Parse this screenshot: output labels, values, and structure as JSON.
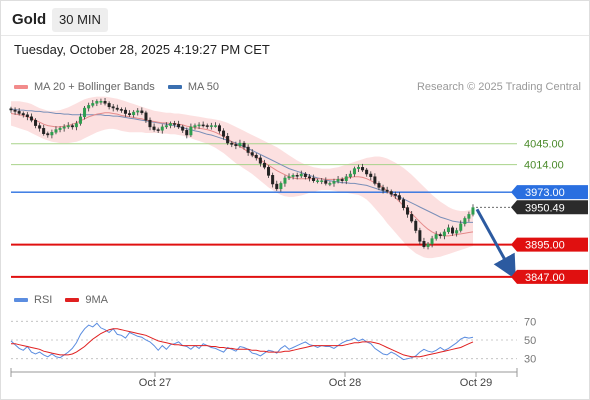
{
  "header": {
    "title": "Gold",
    "timeframe": "30 MIN"
  },
  "timestamp": "Tuesday, October 28, 2025 4:19:27 PM CET",
  "legend": {
    "items": [
      {
        "label": "MA 20 + Bollinger Bands",
        "color": "#f28b8b"
      },
      {
        "label": "MA 50",
        "color": "#3a6fb0"
      }
    ],
    "credit": "Research © 2025 Trading Central"
  },
  "rsi_legend": {
    "items": [
      {
        "label": "RSI",
        "color": "#5b8de0"
      },
      {
        "label": "9MA",
        "color": "#e02020"
      }
    ]
  },
  "chart_data": [
    {
      "type": "candlestick",
      "title": "",
      "xlabel": "",
      "ylabel": "",
      "x_ticks": [
        "Oct 27",
        "Oct 28",
        "Oct 29"
      ],
      "ylim": [
        3835,
        4110
      ],
      "last_price": 3950.49,
      "levels": [
        {
          "value": 4045.0,
          "label": "4045.00",
          "kind": "resistance",
          "color": "#a8d38a"
        },
        {
          "value": 4014.0,
          "label": "4014.00",
          "kind": "resistance",
          "color": "#a8d38a"
        },
        {
          "value": 3973.0,
          "label": "3973.00",
          "kind": "pivot",
          "color": "#2a6fe0"
        },
        {
          "value": 3895.0,
          "label": "3895.00",
          "kind": "support",
          "color": "#e01010"
        },
        {
          "value": 3847.0,
          "label": "3847.00",
          "kind": "support",
          "color": "#e01010"
        }
      ],
      "close": [
        4095,
        4093,
        4090,
        4088,
        4085,
        4080,
        4072,
        4068,
        4060,
        4058,
        4062,
        4066,
        4068,
        4070,
        4072,
        4070,
        4075,
        4085,
        4098,
        4102,
        4105,
        4108,
        4108,
        4105,
        4100,
        4098,
        4096,
        4095,
        4090,
        4088,
        4092,
        4094,
        4091,
        4080,
        4070,
        4066,
        4065,
        4070,
        4072,
        4075,
        4074,
        4070,
        4065,
        4058,
        4070,
        4072,
        4073,
        4072,
        4071,
        4072,
        4072,
        4064,
        4056,
        4046,
        4044,
        4042,
        4046,
        4040,
        4032,
        4028,
        4024,
        4016,
        4010,
        3998,
        3985,
        3978,
        3986,
        3994,
        3996,
        3998,
        3997,
        4000,
        3996,
        3994,
        3990,
        3990,
        3990,
        3986,
        3986,
        3989,
        3992,
        3990,
        3996,
        4000,
        4008,
        4010,
        4006,
        4000,
        3996,
        3986,
        3980,
        3976,
        3974,
        3970,
        3968,
        3962,
        3950,
        3940,
        3930,
        3916,
        3900,
        3892,
        3896,
        3904,
        3910,
        3908,
        3914,
        3920,
        3912,
        3916,
        3926,
        3934,
        3940,
        3950
      ],
      "ma20": [
        4090,
        4089,
        4088,
        4087,
        4085,
        4083,
        4080,
        4077,
        4074,
        4072,
        4071,
        4070,
        4070,
        4071,
        4072,
        4074,
        4076,
        4079,
        4082,
        4085,
        4087,
        4089,
        4090,
        4091,
        4091,
        4090,
        4089,
        4087,
        4086,
        4085,
        4084,
        4083,
        4082,
        4080,
        4079,
        4078,
        4077,
        4076,
        4076,
        4075,
        4075,
        4074,
        4073,
        4071,
        4070,
        4069,
        4068,
        4067,
        4066,
        4064,
        4062,
        4059,
        4056,
        4052,
        4048,
        4044,
        4041,
        4037,
        4033,
        4029,
        4025,
        4021,
        4017,
        4013,
        4009,
        4005,
        4002,
        3999,
        3996,
        3994,
        3993,
        3993,
        3993,
        3993,
        3993,
        3993,
        3993,
        3992,
        3992,
        3992,
        3992,
        3993,
        3994,
        3995,
        3996,
        3996,
        3995,
        3993,
        3990,
        3987,
        3984,
        3980,
        3975,
        3970,
        3965,
        3959,
        3953,
        3947,
        3941,
        3935,
        3929,
        3923,
        3918,
        3914,
        3911,
        3909,
        3908,
        3908,
        3909,
        3910,
        3911,
        3912,
        3913,
        3914
      ],
      "ma50": [
        4096,
        4096,
        4095,
        4095,
        4094,
        4094,
        4093,
        4093,
        4092,
        4092,
        4091,
        4090,
        4090,
        4089,
        4089,
        4088,
        4088,
        4088,
        4088,
        4088,
        4088,
        4088,
        4088,
        4087,
        4087,
        4086,
        4086,
        4085,
        4084,
        4083,
        4082,
        4081,
        4080,
        4079,
        4078,
        4077,
        4076,
        4075,
        4074,
        4073,
        4072,
        4070,
        4069,
        4067,
        4066,
        4064,
        4063,
        4061,
        4059,
        4058,
        4056,
        4054,
        4052,
        4050,
        4048,
        4046,
        4043,
        4041,
        4038,
        4035,
        4032,
        4029,
        4026,
        4023,
        4020,
        4017,
        4014,
        4011,
        4008,
        4006,
        4004,
        4002,
        4000,
        3998,
        3996,
        3994,
        3993,
        3991,
        3990,
        3989,
        3988,
        3987,
        3987,
        3986,
        3986,
        3985,
        3984,
        3983,
        3981,
        3979,
        3977,
        3975,
        3973,
        3971,
        3968,
        3966,
        3963,
        3960,
        3957,
        3954,
        3951,
        3948,
        3945,
        3942,
        3939,
        3936,
        3934,
        3932,
        3930,
        3929,
        3928,
        3928,
        3928,
        3928
      ],
      "bb_upper": [
        4108,
        4108,
        4108,
        4107,
        4106,
        4104,
        4101,
        4098,
        4096,
        4094,
        4094,
        4094,
        4095,
        4097,
        4099,
        4102,
        4105,
        4108,
        4111,
        4113,
        4114,
        4115,
        4115,
        4115,
        4114,
        4113,
        4112,
        4110,
        4108,
        4106,
        4104,
        4102,
        4100,
        4098,
        4096,
        4094,
        4093,
        4092,
        4091,
        4091,
        4090,
        4090,
        4089,
        4088,
        4087,
        4086,
        4085,
        4084,
        4083,
        4082,
        4081,
        4080,
        4078,
        4076,
        4073,
        4070,
        4067,
        4064,
        4061,
        4058,
        4055,
        4052,
        4049,
        4046,
        4043,
        4040,
        4036,
        4032,
        4028,
        4024,
        4020,
        4017,
        4014,
        4012,
        4010,
        4009,
        4008,
        4008,
        4008,
        4009,
        4010,
        4012,
        4014,
        4016,
        4018,
        4020,
        4022,
        4024,
        4025,
        4026,
        4026,
        4025,
        4023,
        4020,
        4017,
        4013,
        4009,
        4004,
        3999,
        3993,
        3987,
        3981,
        3975,
        3969,
        3964,
        3959,
        3955,
        3951,
        3948,
        3946,
        3945,
        3945,
        3946,
        3948
      ],
      "bb_lower": [
        4072,
        4070,
        4068,
        4066,
        4064,
        4061,
        4058,
        4055,
        4052,
        4050,
        4048,
        4047,
        4046,
        4046,
        4046,
        4047,
        4048,
        4050,
        4053,
        4056,
        4059,
        4062,
        4064,
        4066,
        4067,
        4067,
        4066,
        4064,
        4063,
        4062,
        4062,
        4062,
        4062,
        4061,
        4061,
        4061,
        4061,
        4060,
        4060,
        4059,
        4059,
        4058,
        4057,
        4055,
        4053,
        4051,
        4049,
        4047,
        4045,
        4042,
        4039,
        4035,
        4031,
        4026,
        4021,
        4016,
        4012,
        4008,
        4004,
        4000,
        3995,
        3990,
        3985,
        3980,
        3976,
        3972,
        3969,
        3967,
        3966,
        3966,
        3967,
        3968,
        3970,
        3972,
        3973,
        3975,
        3976,
        3976,
        3976,
        3975,
        3974,
        3973,
        3972,
        3971,
        3970,
        3969,
        3966,
        3962,
        3956,
        3949,
        3942,
        3935,
        3927,
        3920,
        3913,
        3906,
        3899,
        3892,
        3887,
        3882,
        3879,
        3876,
        3875,
        3875,
        3876,
        3877,
        3879,
        3881,
        3883,
        3885,
        3887,
        3889,
        3891,
        3893
      ],
      "forecast": {
        "from": 3950.49,
        "to": 3847.0
      }
    },
    {
      "type": "line",
      "title": "",
      "ylim": [
        20,
        80
      ],
      "y_ticks": [
        70,
        50,
        30
      ],
      "series": [
        {
          "name": "RSI",
          "color": "#5b8de0",
          "values": [
            49,
            45,
            41,
            39,
            43,
            37,
            35,
            37,
            34,
            32,
            35,
            32,
            31,
            34,
            37,
            41,
            47,
            56,
            62,
            66,
            64,
            68,
            63,
            61,
            58,
            62,
            56,
            55,
            52,
            58,
            56,
            54,
            53,
            50,
            48,
            44,
            39,
            44,
            40,
            45,
            46,
            48,
            44,
            43,
            40,
            44,
            41,
            46,
            44,
            42,
            41,
            39,
            37,
            42,
            40,
            38,
            43,
            42,
            40,
            36,
            35,
            33,
            36,
            39,
            38,
            36,
            41,
            44,
            40,
            42,
            44,
            46,
            48,
            45,
            44,
            42,
            44,
            43,
            43,
            41,
            44,
            47,
            49,
            50,
            52,
            49,
            51,
            48,
            46,
            41,
            38,
            35,
            34,
            37,
            35,
            32,
            29,
            30,
            31,
            33,
            37,
            40,
            38,
            37,
            39,
            42,
            39,
            41,
            44,
            47,
            51,
            53,
            52,
            53
          ]
        },
        {
          "name": "9MA",
          "color": "#e02020",
          "values": [
            46,
            46,
            45,
            44,
            43,
            42,
            41,
            40,
            38,
            37,
            36,
            35,
            34,
            34,
            34,
            35,
            37,
            40,
            43,
            47,
            51,
            54,
            57,
            59,
            61,
            62,
            62,
            61,
            60,
            59,
            58,
            57,
            56,
            55,
            53,
            51,
            49,
            48,
            47,
            46,
            45,
            45,
            44,
            44,
            44,
            44,
            44,
            44,
            44,
            43,
            43,
            42,
            42,
            41,
            41,
            40,
            40,
            40,
            40,
            39,
            39,
            38,
            38,
            37,
            37,
            37,
            37,
            38,
            38,
            39,
            40,
            41,
            42,
            43,
            44,
            44,
            44,
            44,
            44,
            44,
            44,
            44,
            45,
            46,
            47,
            47,
            48,
            48,
            48,
            47,
            46,
            44,
            42,
            40,
            38,
            36,
            34,
            33,
            32,
            32,
            32,
            33,
            34,
            35,
            36,
            37,
            38,
            39,
            40,
            41,
            42,
            44,
            46,
            48
          ]
        }
      ]
    }
  ]
}
